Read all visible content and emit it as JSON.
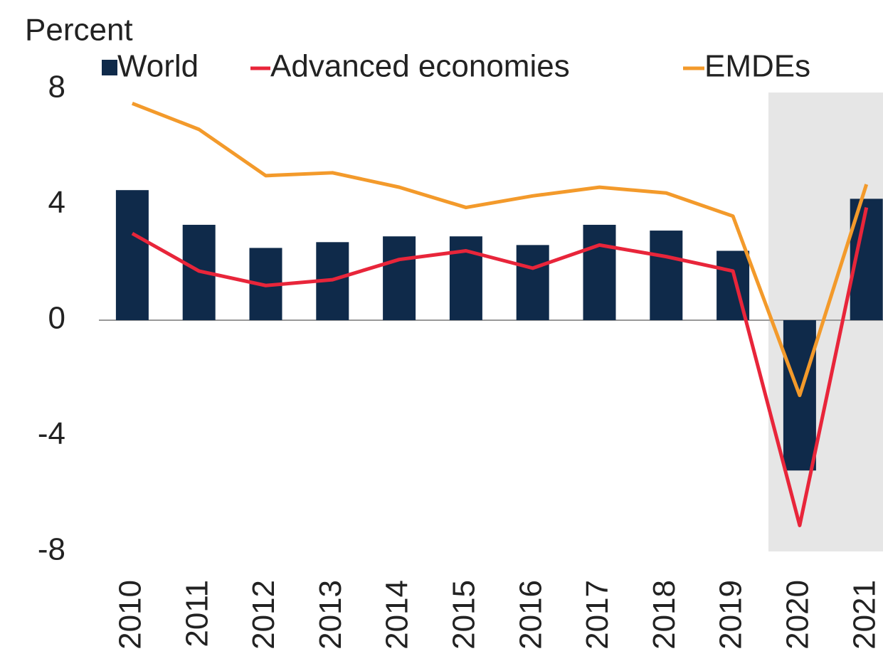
{
  "chart_data": {
    "type": "bar_line",
    "y_label": "Percent",
    "categories": [
      "2010",
      "2011",
      "2012",
      "2013",
      "2014",
      "2015",
      "2016",
      "2017",
      "2018",
      "2019",
      "2020",
      "2021"
    ],
    "series": [
      {
        "name": "World",
        "type": "bar",
        "color": "#0f2a4a",
        "values": [
          4.5,
          3.3,
          2.5,
          2.7,
          2.9,
          2.9,
          2.6,
          3.3,
          3.1,
          2.4,
          -5.2,
          4.2
        ]
      },
      {
        "name": "Advanced economies",
        "type": "line",
        "color": "#e8253a",
        "values": [
          3.0,
          1.7,
          1.2,
          1.4,
          2.1,
          2.4,
          1.8,
          2.6,
          2.2,
          1.7,
          -7.1,
          3.9
        ]
      },
      {
        "name": "EMDEs",
        "type": "line",
        "color": "#f39a2b",
        "values": [
          7.5,
          6.6,
          5.0,
          5.1,
          4.6,
          3.9,
          4.3,
          4.6,
          4.4,
          3.6,
          -2.6,
          4.7
        ]
      }
    ],
    "ylim": [
      -8,
      8
    ],
    "yticks": [
      -8,
      -4,
      0,
      4,
      8
    ]
  }
}
